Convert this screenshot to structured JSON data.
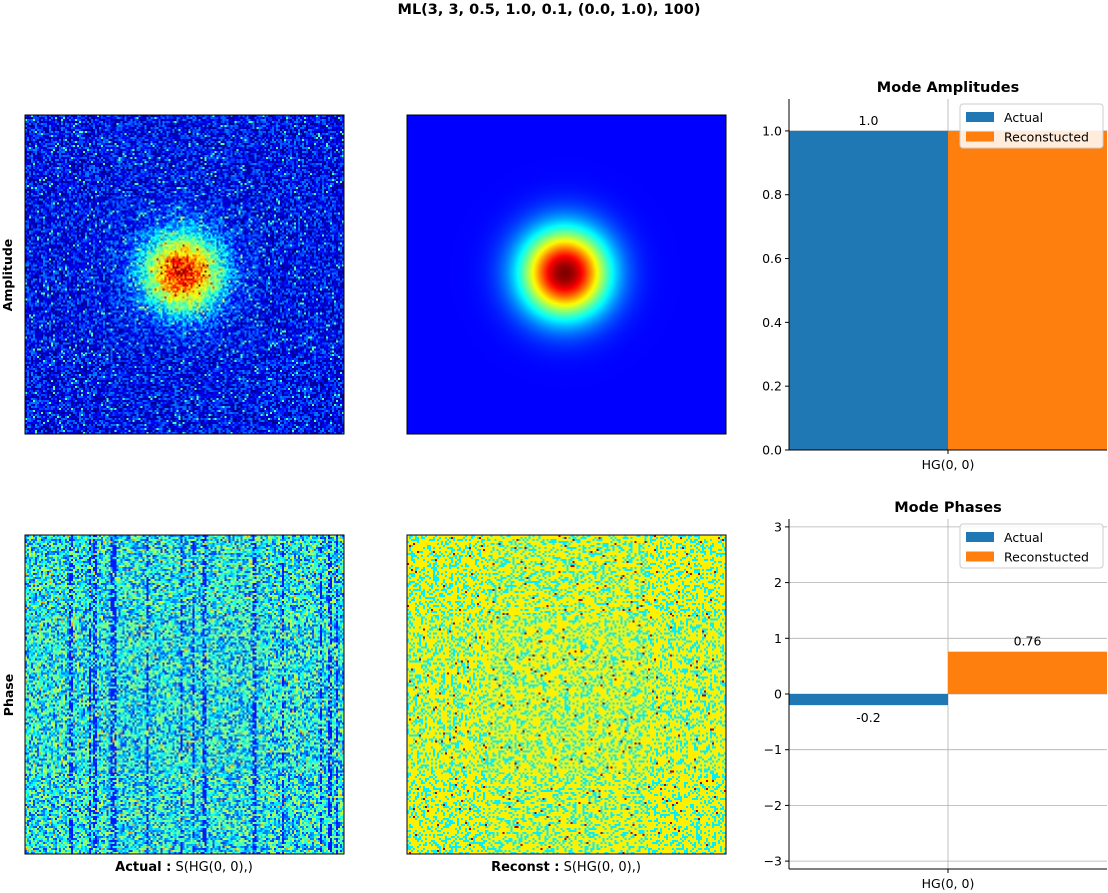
{
  "figure": {
    "title": "ML(3, 3, 0.5, 1.0, 0.1, (0.0, 1.0), 100)",
    "row_labels": [
      "Amplitude",
      "Phase"
    ],
    "col_labels": [
      {
        "bold": "Actual :",
        "text": " S(HG(0, 0),)"
      },
      {
        "bold": "Reconst :",
        "text": " S(HG(0, 0),)"
      }
    ]
  },
  "colors": {
    "actual": "#1f77b4",
    "reconstructed": "#ff7f0e",
    "colormap": "jet"
  },
  "chart_data": [
    {
      "type": "heatmap",
      "name": "actual-amplitude",
      "description_of_content": "noisy gaussian beam",
      "colormap": "jet",
      "beam_center": [
        0.5,
        0.5
      ],
      "noise": true
    },
    {
      "type": "heatmap",
      "name": "reconstructed-amplitude",
      "colormap": "jet",
      "beam_center": [
        0.5,
        0.5
      ],
      "noise": false
    },
    {
      "type": "heatmap",
      "name": "actual-phase",
      "colormap": "jet",
      "noise": true
    },
    {
      "type": "heatmap",
      "name": "reconstructed-phase",
      "colormap": "jet",
      "noise": true
    },
    {
      "type": "bar",
      "title": "Mode Amplitudes",
      "categories": [
        "HG(0, 0)"
      ],
      "series": [
        {
          "name": "Actual",
          "values": [
            1.0
          ]
        },
        {
          "name": "Reconstucted",
          "values": [
            1.0
          ]
        }
      ],
      "data_labels": [
        "1.0"
      ],
      "ylim": [
        0,
        1.1
      ],
      "yticks": [
        0.0,
        0.2,
        0.4,
        0.6,
        0.8,
        1.0
      ],
      "ytick_labels": [
        "0.0",
        "0.2",
        "0.4",
        "0.6",
        "0.8",
        "1.0"
      ],
      "grid": true,
      "legend": "top-right"
    },
    {
      "type": "bar",
      "title": "Mode Phases",
      "categories": [
        "HG(0, 0)"
      ],
      "series": [
        {
          "name": "Actual",
          "values": [
            -0.2
          ]
        },
        {
          "name": "Reconstucted",
          "values": [
            0.76
          ]
        }
      ],
      "data_labels": [
        "-0.2",
        "0.76"
      ],
      "ylim": [
        -3.14159,
        3.14159
      ],
      "yticks": [
        -3,
        -2,
        -1,
        0,
        1,
        2,
        3
      ],
      "ytick_labels": [
        "−3",
        "−2",
        "−1",
        "0",
        "1",
        "2",
        "3"
      ],
      "grid": true,
      "legend": "top-right"
    }
  ]
}
